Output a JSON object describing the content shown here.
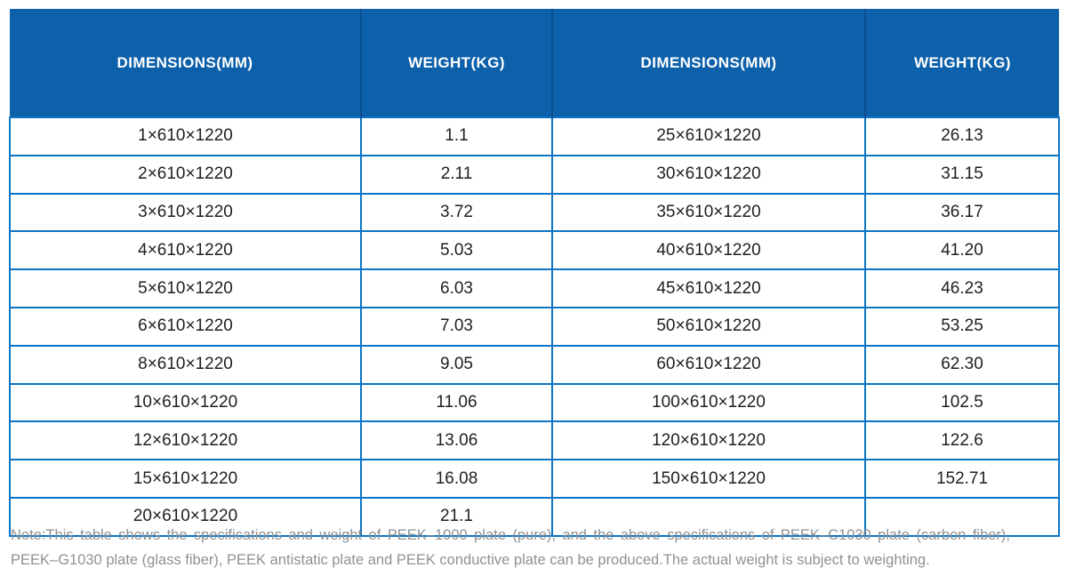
{
  "table": {
    "headers": [
      {
        "label": "DIMENSIONS(MM)"
      },
      {
        "label": "WEIGHT(KG)"
      },
      {
        "label": "DIMENSIONS(MM)"
      },
      {
        "label": "WEIGHT(KG)"
      }
    ],
    "rows": [
      [
        "1×610×1220",
        "1.1",
        "25×610×1220",
        "26.13"
      ],
      [
        "2×610×1220",
        "2.11",
        "30×610×1220",
        "31.15"
      ],
      [
        "3×610×1220",
        "3.72",
        "35×610×1220",
        "36.17"
      ],
      [
        "4×610×1220",
        "5.03",
        "40×610×1220",
        "41.20"
      ],
      [
        "5×610×1220",
        "6.03",
        "45×610×1220",
        "46.23"
      ],
      [
        "6×610×1220",
        "7.03",
        "50×610×1220",
        "53.25"
      ],
      [
        "8×610×1220",
        "9.05",
        "60×610×1220",
        "62.30"
      ],
      [
        "10×610×1220",
        "11.06",
        "100×610×1220",
        "102.5"
      ],
      [
        "12×610×1220",
        "13.06",
        "120×610×1220",
        "122.6"
      ],
      [
        "15×610×1220",
        "16.08",
        "150×610×1220",
        "152.71"
      ],
      [
        "20×610×1220",
        "21.1",
        "",
        ""
      ]
    ]
  },
  "note": {
    "line1": "Note:This table shows the specifications and weight of PEEK–1000 plate (pure), and the above specifications of PEEK–C1030 plate (carbon fiber),",
    "line2": "PEEK–G1030 plate (glass fiber), PEEK antistatic plate and PEEK conductive plate can be produced.The actual weight is subject to weighting."
  },
  "colors": {
    "header_bg": "#0d60aa",
    "header_divider": "#0a4f8e",
    "grid_border": "#0b74c4",
    "cell_text": "#1f1f1f",
    "note_text": "#8e9193"
  }
}
